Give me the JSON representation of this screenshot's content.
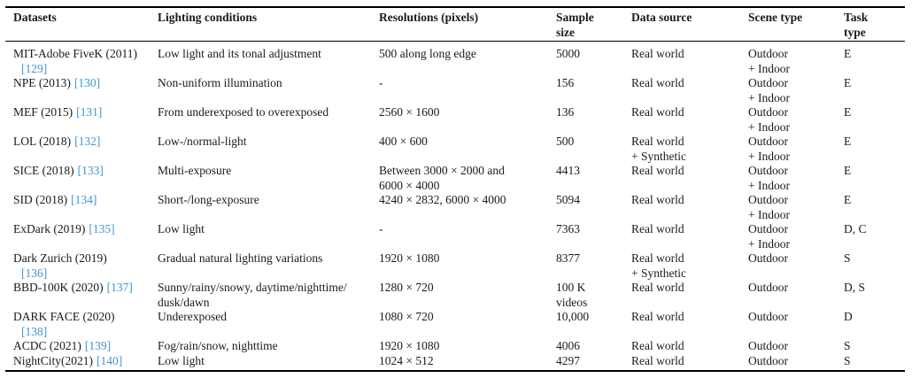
{
  "link_color": "#3f97d1",
  "text_color": "#1a1a1a",
  "table": {
    "columns": [
      {
        "key": "dataset",
        "label": "Datasets"
      },
      {
        "key": "lighting",
        "label": "Lighting conditions"
      },
      {
        "key": "resolution",
        "label": "Resolutions (pixels)"
      },
      {
        "key": "sample",
        "label": "Sample\nsize"
      },
      {
        "key": "source",
        "label": "Data source"
      },
      {
        "key": "scene",
        "label": "Scene type"
      },
      {
        "key": "task",
        "label": "Task\ntype"
      }
    ],
    "rows": [
      {
        "dataset_name": "MIT-Adobe FiveK (2011)",
        "citation": "[129]",
        "citation_own_line": true,
        "lighting": "Low light and its tonal adjustment",
        "resolution": "500 along long edge",
        "sample": "5000",
        "source": "Real world",
        "scene": "Outdoor\n+ Indoor",
        "task": "E"
      },
      {
        "dataset_name": "NPE (2013)",
        "citation": "[130]",
        "citation_own_line": false,
        "lighting": "Non-uniform illumination",
        "resolution": "-",
        "sample": "156",
        "source": "Real world",
        "scene": "Outdoor\n+ Indoor",
        "task": "E"
      },
      {
        "dataset_name": "MEF (2015)",
        "citation": "[131]",
        "citation_own_line": false,
        "lighting": "From underexposed to overexposed",
        "resolution": "2560 × 1600",
        "sample": "136",
        "source": "Real world",
        "scene": "Outdoor\n+ Indoor",
        "task": "E"
      },
      {
        "dataset_name": "LOL (2018)",
        "citation": "[132]",
        "citation_own_line": false,
        "lighting": "Low-/normal-light",
        "resolution": "400 × 600",
        "sample": "500",
        "source": "Real world\n+ Synthetic",
        "scene": "Outdoor\n+ Indoor",
        "task": "E"
      },
      {
        "dataset_name": "SICE (2018)",
        "citation": "[133]",
        "citation_own_line": false,
        "lighting": "Multi-exposure",
        "resolution": "Between 3000 × 2000 and\n6000 × 4000",
        "sample": "4413",
        "source": "Real world",
        "scene": "Outdoor\n+ Indoor",
        "task": "E"
      },
      {
        "dataset_name": "SID (2018)",
        "citation": "[134]",
        "citation_own_line": false,
        "lighting": "Short-/long-exposure",
        "resolution": "4240 × 2832, 6000 × 4000",
        "sample": "5094",
        "source": "Real world",
        "scene": "Outdoor\n+ Indoor",
        "task": "E"
      },
      {
        "dataset_name": "ExDark (2019)",
        "citation": "[135]",
        "citation_own_line": false,
        "lighting": "Low light",
        "resolution": "-",
        "sample": "7363",
        "source": "Real world",
        "scene": "Outdoor\n+ Indoor",
        "task": "D, C"
      },
      {
        "dataset_name": "Dark Zurich (2019)",
        "citation": "[136]",
        "citation_own_line": true,
        "lighting": "Gradual natural lighting variations",
        "resolution": "1920 × 1080",
        "sample": "8377",
        "source": "Real world\n+ Synthetic",
        "scene": "Outdoor",
        "task": "S"
      },
      {
        "dataset_name": "BBD-100K (2020)",
        "citation": "[137]",
        "citation_own_line": false,
        "lighting": "Sunny/rainy/snowy, daytime/nighttime/\ndusk/dawn",
        "resolution": "1280 × 720",
        "sample": "100 K\nvideos",
        "source": "Real world",
        "scene": "Outdoor",
        "task": "D, S"
      },
      {
        "dataset_name": "DARK FACE (2020)",
        "citation": "[138]",
        "citation_own_line": true,
        "lighting": "Underexposed",
        "resolution": "1080 × 720",
        "sample": "10,000",
        "source": "Real world",
        "scene": "Outdoor",
        "task": "D"
      },
      {
        "dataset_name": "ACDC (2021)",
        "citation": "[139]",
        "citation_own_line": false,
        "lighting": "Fog/rain/snow, nighttime",
        "resolution": "1920 × 1080",
        "sample": "4006",
        "source": "Real world",
        "scene": "Outdoor",
        "task": "S"
      },
      {
        "dataset_name": "NightCity(2021)",
        "citation": "[140]",
        "citation_own_line": false,
        "lighting": "Low light",
        "resolution": "1024 × 512",
        "sample": "4297",
        "source": "Real world",
        "scene": "Outdoor",
        "task": "S"
      }
    ]
  }
}
